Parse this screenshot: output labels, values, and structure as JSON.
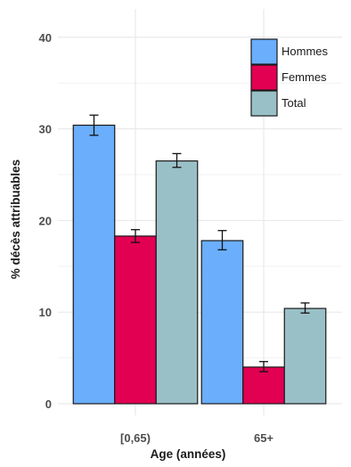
{
  "chart_data": {
    "type": "bar",
    "xlabel": "Age (années)",
    "ylabel": "% décès attribuables",
    "ylim": [
      0,
      42
    ],
    "yticks": [
      0,
      10,
      20,
      30,
      40
    ],
    "grid": true,
    "legend_position": "top-right",
    "categories": [
      "[0,65)",
      "65+"
    ],
    "series": [
      {
        "name": "Hommes",
        "color": "#6aaefc",
        "values": [
          30.4,
          17.8
        ],
        "err_low": [
          29.3,
          16.8
        ],
        "err_high": [
          31.5,
          18.9
        ]
      },
      {
        "name": "Femmes",
        "color": "#e20052",
        "values": [
          18.3,
          4.0
        ],
        "err_low": [
          17.6,
          3.5
        ],
        "err_high": [
          19.0,
          4.6
        ]
      },
      {
        "name": "Total",
        "color": "#9ac0c7",
        "values": [
          26.5,
          10.4
        ],
        "err_low": [
          25.8,
          9.9
        ],
        "err_high": [
          27.3,
          11.0
        ]
      }
    ]
  }
}
